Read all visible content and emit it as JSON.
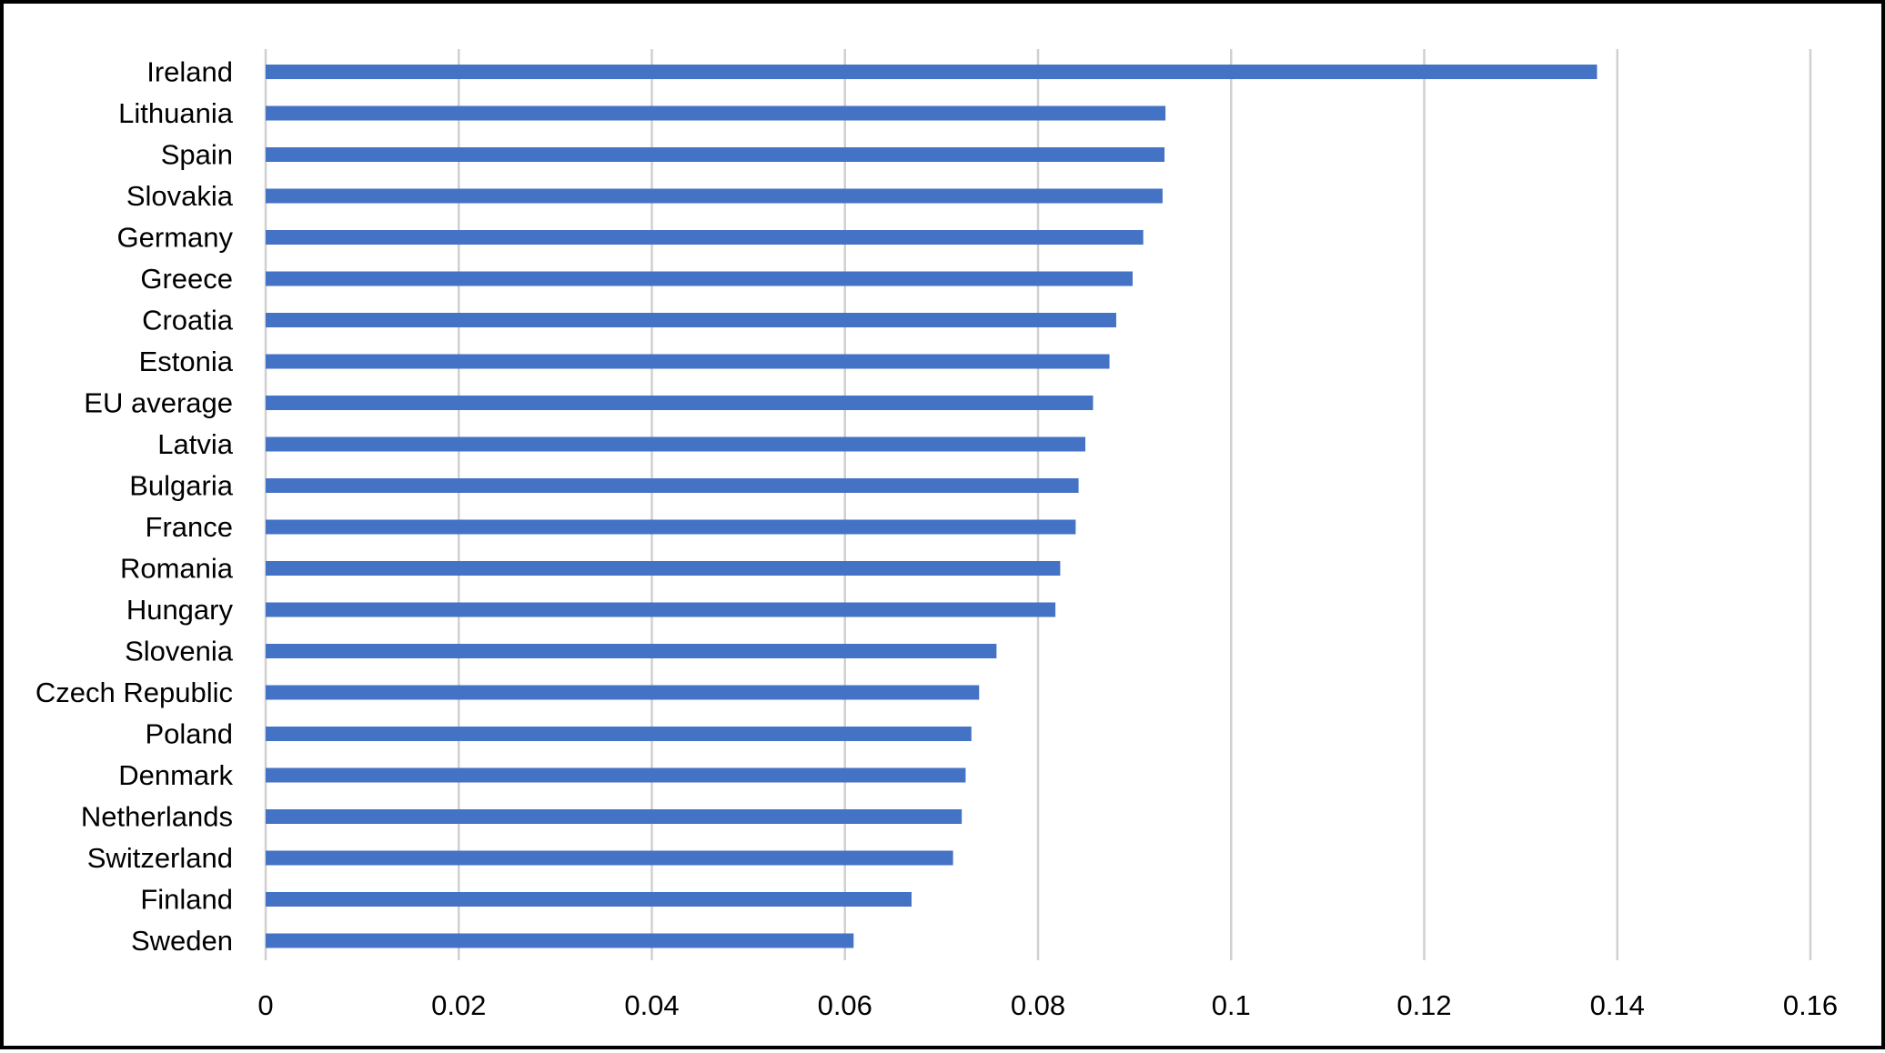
{
  "chart_data": {
    "type": "bar",
    "orientation": "horizontal",
    "title": "",
    "xlabel": "",
    "ylabel": "",
    "categories": [
      "Ireland",
      "Lithuania",
      "Spain",
      "Slovakia",
      "Germany",
      "Greece",
      "Croatia",
      "Estonia",
      "EU average",
      "Latvia",
      "Bulgaria",
      "France",
      "Romania",
      "Hungary",
      "Slovenia",
      "Czech Republic",
      "Poland",
      "Denmark",
      "Netherlands",
      "Switzerland",
      "Finland",
      "Sweden"
    ],
    "values": [
      0.1379,
      0.0932,
      0.0931,
      0.0929,
      0.0909,
      0.0898,
      0.0881,
      0.0874,
      0.0857,
      0.0849,
      0.0842,
      0.0839,
      0.0823,
      0.0818,
      0.0757,
      0.0739,
      0.0731,
      0.0725,
      0.0721,
      0.0712,
      0.0669,
      0.0609
    ],
    "xlim": [
      0,
      0.16
    ],
    "xticks": [
      0,
      0.02,
      0.04,
      0.06,
      0.08,
      0.1,
      0.12,
      0.14,
      0.16
    ],
    "xtick_labels": [
      "0",
      "0.02",
      "0.04",
      "0.06",
      "0.08",
      "0.1",
      "0.12",
      "0.14",
      "0.16"
    ],
    "grid": "vertical",
    "legend": "none",
    "bar_color": "#4472C4",
    "grid_color": "#D0D0D0"
  }
}
